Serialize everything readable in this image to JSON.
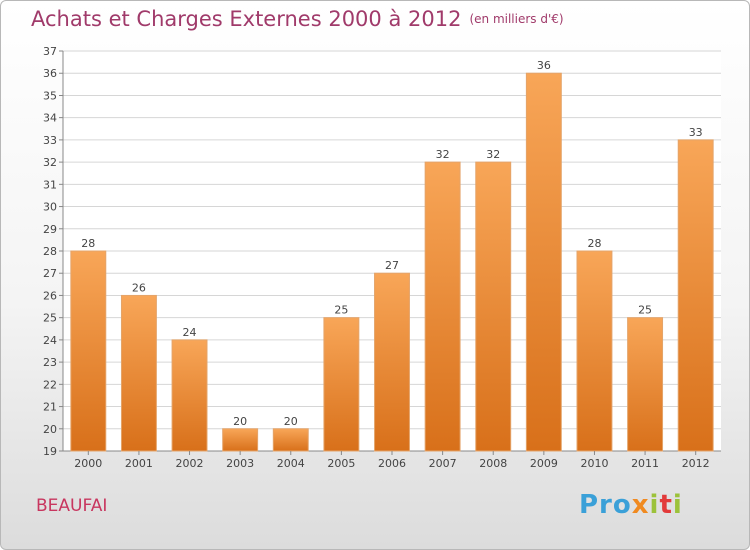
{
  "header": {
    "title": "Achats et Charges Externes 2000 à 2012",
    "subtitle": "(en milliers d'€)"
  },
  "footer": {
    "town": "BEAUFAI",
    "logo_text": "Proxiti"
  },
  "colors": {
    "bar_top": "#f8a658",
    "bar_bottom": "#d8701a",
    "title": "#a03a6a",
    "town": "#c8365f"
  },
  "chart_data": {
    "type": "bar",
    "title": "Achats et Charges Externes 2000 à 2012",
    "subtitle": "(en milliers d'€)",
    "xlabel": "",
    "ylabel": "",
    "categories": [
      "2000",
      "2001",
      "2002",
      "2003",
      "2004",
      "2005",
      "2006",
      "2007",
      "2008",
      "2009",
      "2010",
      "2011",
      "2012"
    ],
    "values": [
      28,
      26,
      24,
      20,
      20,
      25,
      27,
      32,
      32,
      36,
      28,
      25,
      33
    ],
    "ylim": [
      19,
      37
    ],
    "yticks": [
      19,
      20,
      21,
      22,
      23,
      24,
      25,
      26,
      27,
      28,
      29,
      30,
      31,
      32,
      33,
      34,
      35,
      36,
      37
    ],
    "grid": true,
    "data_labels": true,
    "legend": "none"
  }
}
